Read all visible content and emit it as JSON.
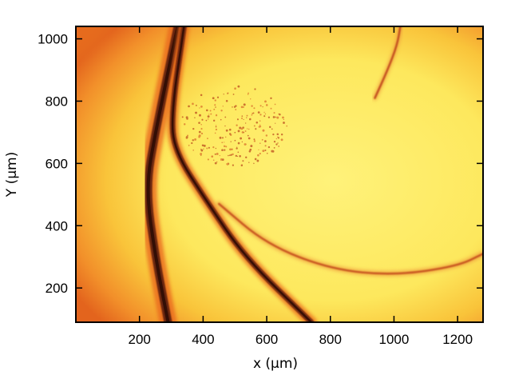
{
  "chart_data": {
    "type": "heatmap",
    "title": "",
    "xlabel": "x (μm)",
    "ylabel": "Y (μm)",
    "xlim": [
      0,
      1280
    ],
    "ylim": [
      1040,
      90
    ],
    "x_ticks": [
      200,
      400,
      600,
      800,
      1000,
      1200
    ],
    "y_ticks": [
      200,
      400,
      600,
      800,
      1000
    ],
    "colormap": [
      "#b01a0a",
      "#e65a12",
      "#f7a020",
      "#ffe060",
      "#fff27a"
    ],
    "features": [
      {
        "name": "left band",
        "points": [
          [
            290,
            90
          ],
          [
            250,
            300
          ],
          [
            220,
            520
          ],
          [
            250,
            700
          ],
          [
            320,
            1040
          ]
        ]
      },
      {
        "name": "middle band",
        "points": [
          [
            740,
            90
          ],
          [
            530,
            300
          ],
          [
            410,
            480
          ],
          [
            310,
            640
          ],
          [
            300,
            760
          ],
          [
            340,
            1040
          ]
        ]
      },
      {
        "name": "upper right arc",
        "points": [
          [
            450,
            470
          ],
          [
            600,
            340
          ],
          [
            800,
            260
          ],
          [
            1000,
            240
          ],
          [
            1200,
            270
          ],
          [
            1280,
            310
          ]
        ]
      },
      {
        "name": "lower right streak",
        "points": [
          [
            940,
            810
          ],
          [
            980,
            900
          ],
          [
            1010,
            980
          ],
          [
            1020,
            1040
          ]
        ]
      }
    ]
  }
}
